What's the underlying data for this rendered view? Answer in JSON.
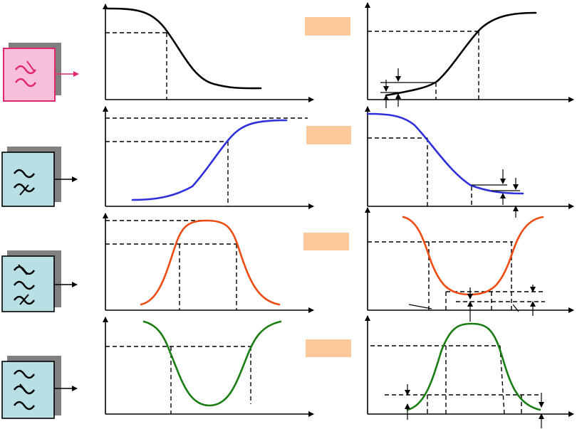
{
  "colors": {
    "lowpass": "#000000",
    "highpass": "#2f2fdc",
    "bandpass": "#ee4a12",
    "bandstop": "#1a7d12",
    "label_tag": "#fcc99a",
    "filter_box": "#b8dfe3",
    "filter_box_highlight": "#f7bfd9",
    "filter_box_highlight_border": "#e0266e",
    "box_shadow": "#808080"
  },
  "rows": [
    {
      "filter_type": "low-pass",
      "icon": "lowpass-filter-icon",
      "highlighted": true
    },
    {
      "filter_type": "high-pass",
      "icon": "highpass-filter-icon",
      "highlighted": false
    },
    {
      "filter_type": "band-pass",
      "icon": "bandpass-filter-icon",
      "highlighted": false
    },
    {
      "filter_type": "band-stop",
      "icon": "bandstop-filter-icon",
      "highlighted": false
    }
  ],
  "label_tags": [
    "",
    "",
    "",
    ""
  ]
}
